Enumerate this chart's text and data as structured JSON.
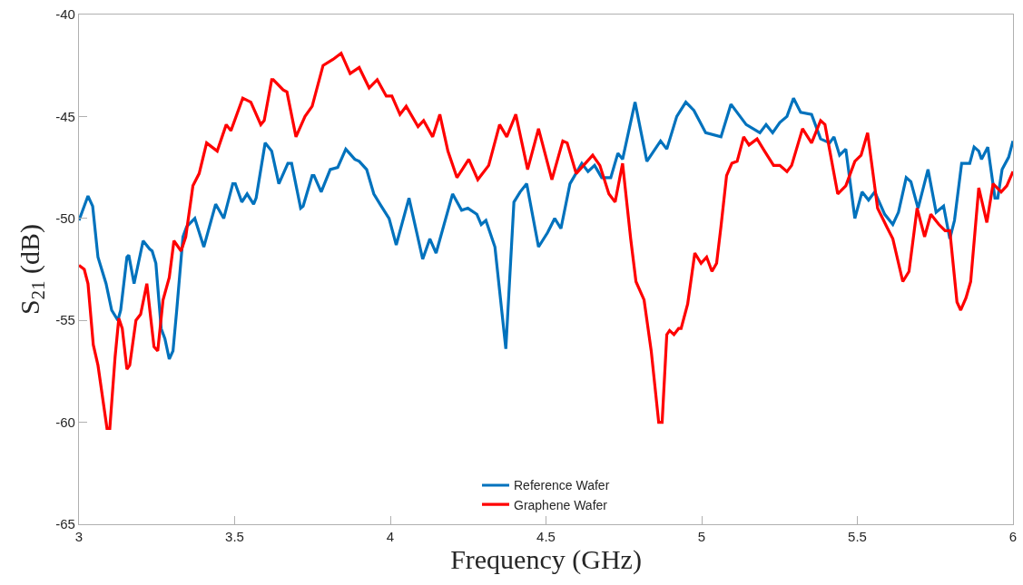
{
  "chart_data": {
    "type": "line",
    "xlabel": "Frequency (GHz)",
    "ylabel": "S$_{21}$ (dB)",
    "xlim": [
      3,
      6
    ],
    "xticks": [
      3,
      3.5,
      4,
      4.5,
      5,
      5.5,
      6
    ],
    "ylim": [
      -65,
      -40
    ],
    "yticks": [
      -65,
      -60,
      -55,
      -50,
      -45,
      -40
    ],
    "grid": false,
    "legend": "bottom",
    "line_style": "solid",
    "marker": "none",
    "series": [
      {
        "name": "Reference Wafer",
        "color": "#0072bd",
        "x": [
          3.0,
          3.029,
          3.044,
          3.061,
          3.087,
          3.105,
          3.125,
          3.134,
          3.154,
          3.16,
          3.177,
          3.206,
          3.227,
          3.235,
          3.247,
          3.264,
          3.276,
          3.29,
          3.302,
          3.314,
          3.334,
          3.346,
          3.372,
          3.401,
          3.439,
          3.465,
          3.494,
          3.502,
          3.523,
          3.54,
          3.561,
          3.569,
          3.598,
          3.619,
          3.642,
          3.671,
          3.683,
          3.712,
          3.72,
          3.749,
          3.755,
          3.778,
          3.807,
          3.831,
          3.857,
          3.886,
          3.9,
          3.924,
          3.947,
          3.967,
          3.996,
          4.019,
          4.06,
          4.104,
          4.127,
          4.147,
          4.2,
          4.229,
          4.249,
          4.278,
          4.292,
          4.307,
          4.336,
          4.371,
          4.397,
          4.417,
          4.438,
          4.476,
          4.505,
          4.528,
          4.548,
          4.577,
          4.615,
          4.635,
          4.656,
          4.679,
          4.708,
          4.731,
          4.746,
          4.786,
          4.824,
          4.868,
          4.888,
          4.92,
          4.949,
          4.975,
          5.013,
          5.062,
          5.094,
          5.143,
          5.187,
          5.207,
          5.228,
          5.251,
          5.274,
          5.295,
          5.318,
          5.353,
          5.382,
          5.411,
          5.425,
          5.443,
          5.463,
          5.492,
          5.515,
          5.536,
          5.556,
          5.588,
          5.614,
          5.632,
          5.657,
          5.672,
          5.695,
          5.727,
          5.753,
          5.777,
          5.797,
          5.812,
          5.835,
          5.861,
          5.875,
          5.89,
          5.899,
          5.919,
          5.942,
          5.951,
          5.965,
          5.986,
          6.0
        ],
        "values": [
          -50.1,
          -48.9,
          -49.4,
          -51.9,
          -53.2,
          -54.5,
          -55.0,
          -54.5,
          -51.9,
          -51.8,
          -53.2,
          -51.1,
          -51.5,
          -51.6,
          -52.2,
          -55.4,
          -55.9,
          -56.9,
          -56.5,
          -54.5,
          -50.9,
          -50.4,
          -50.0,
          -51.4,
          -49.3,
          -50.0,
          -48.3,
          -48.3,
          -49.2,
          -48.8,
          -49.3,
          -49.0,
          -46.3,
          -46.7,
          -48.3,
          -47.3,
          -47.3,
          -49.5,
          -49.4,
          -47.9,
          -47.9,
          -48.7,
          -47.6,
          -47.5,
          -46.6,
          -47.1,
          -47.2,
          -47.6,
          -48.8,
          -49.3,
          -50.0,
          -51.3,
          -49.0,
          -52.0,
          -51.0,
          -51.7,
          -48.8,
          -49.6,
          -49.5,
          -49.8,
          -50.3,
          -50.1,
          -51.4,
          -56.4,
          -49.2,
          -48.7,
          -48.3,
          -51.4,
          -50.7,
          -50.0,
          -50.5,
          -48.3,
          -47.3,
          -47.7,
          -47.4,
          -48.0,
          -48.0,
          -46.8,
          -47.1,
          -44.3,
          -47.2,
          -46.2,
          -46.6,
          -45.0,
          -44.3,
          -44.7,
          -45.8,
          -46.0,
          -44.4,
          -45.4,
          -45.8,
          -45.4,
          -45.8,
          -45.3,
          -45.0,
          -44.1,
          -44.8,
          -44.9,
          -46.1,
          -46.3,
          -46.0,
          -46.9,
          -46.6,
          -50.0,
          -48.7,
          -49.1,
          -48.7,
          -49.8,
          -50.3,
          -49.7,
          -48.0,
          -48.2,
          -49.5,
          -47.6,
          -49.7,
          -49.4,
          -51.0,
          -50.1,
          -47.3,
          -47.3,
          -46.5,
          -46.7,
          -47.1,
          -46.5,
          -49.0,
          -49.0,
          -47.6,
          -47.0,
          -46.2
        ]
      },
      {
        "name": "Graphene Wafer",
        "color": "#ff0000",
        "x": [
          3.0,
          3.017,
          3.029,
          3.046,
          3.061,
          3.09,
          3.099,
          3.116,
          3.128,
          3.139,
          3.154,
          3.163,
          3.183,
          3.198,
          3.218,
          3.241,
          3.253,
          3.27,
          3.29,
          3.305,
          3.328,
          3.343,
          3.366,
          3.386,
          3.41,
          3.444,
          3.473,
          3.488,
          3.526,
          3.552,
          3.584,
          3.595,
          3.619,
          3.624,
          3.656,
          3.668,
          3.697,
          3.726,
          3.749,
          3.784,
          3.816,
          3.842,
          3.871,
          3.9,
          3.932,
          3.958,
          3.987,
          4.005,
          4.031,
          4.051,
          4.089,
          4.107,
          4.136,
          4.159,
          4.185,
          4.214,
          4.252,
          4.281,
          4.316,
          4.351,
          4.374,
          4.403,
          4.441,
          4.476,
          4.519,
          4.554,
          4.568,
          4.597,
          4.65,
          4.673,
          4.702,
          4.722,
          4.746,
          4.772,
          4.789,
          4.815,
          4.838,
          4.862,
          4.873,
          4.888,
          4.897,
          4.911,
          4.926,
          4.934,
          4.955,
          4.978,
          4.998,
          5.016,
          5.033,
          5.048,
          5.062,
          5.08,
          5.097,
          5.114,
          5.135,
          5.152,
          5.178,
          5.202,
          5.231,
          5.251,
          5.274,
          5.289,
          5.324,
          5.353,
          5.382,
          5.396,
          5.437,
          5.463,
          5.492,
          5.512,
          5.533,
          5.565,
          5.594,
          5.614,
          5.646,
          5.666,
          5.692,
          5.716,
          5.736,
          5.762,
          5.782,
          5.797,
          5.82,
          5.832,
          5.849,
          5.864,
          5.89,
          5.916,
          5.936,
          5.962,
          5.98,
          6.0
        ],
        "values": [
          -52.3,
          -52.5,
          -53.2,
          -56.2,
          -57.2,
          -60.3,
          -60.3,
          -56.8,
          -54.9,
          -55.4,
          -57.4,
          -57.2,
          -55.0,
          -54.7,
          -53.2,
          -56.3,
          -56.5,
          -54.0,
          -52.9,
          -51.1,
          -51.6,
          -50.9,
          -48.4,
          -47.8,
          -46.3,
          -46.7,
          -45.4,
          -45.7,
          -44.1,
          -44.3,
          -45.4,
          -45.2,
          -43.2,
          -43.2,
          -43.7,
          -43.8,
          -46.0,
          -45.0,
          -44.5,
          -42.5,
          -42.2,
          -41.9,
          -42.9,
          -42.6,
          -43.6,
          -43.2,
          -44.0,
          -44.0,
          -44.9,
          -44.5,
          -45.5,
          -45.2,
          -46.0,
          -44.9,
          -46.7,
          -48.0,
          -47.1,
          -48.1,
          -47.4,
          -45.4,
          -46.0,
          -44.9,
          -47.6,
          -45.6,
          -48.1,
          -46.2,
          -46.3,
          -47.8,
          -46.9,
          -47.4,
          -48.8,
          -49.2,
          -47.3,
          -51.0,
          -53.1,
          -54.0,
          -56.5,
          -60.0,
          -60.0,
          -55.7,
          -55.5,
          -55.7,
          -55.4,
          -55.4,
          -54.2,
          -51.7,
          -52.2,
          -51.9,
          -52.6,
          -52.2,
          -50.4,
          -47.9,
          -47.3,
          -47.2,
          -46.0,
          -46.4,
          -46.1,
          -46.7,
          -47.4,
          -47.4,
          -47.7,
          -47.4,
          -45.6,
          -46.3,
          -45.2,
          -45.4,
          -48.8,
          -48.4,
          -47.2,
          -46.9,
          -45.8,
          -49.5,
          -50.4,
          -51.0,
          -53.1,
          -52.6,
          -49.5,
          -50.9,
          -49.8,
          -50.3,
          -50.6,
          -50.6,
          -54.1,
          -54.5,
          -53.9,
          -53.1,
          -48.5,
          -50.2,
          -48.3,
          -48.7,
          -48.4,
          -47.7
        ]
      }
    ]
  }
}
